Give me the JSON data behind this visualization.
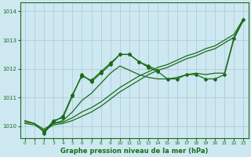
{
  "title": "Graphe pression niveau de la mer (hPa)",
  "xlim": [
    -0.5,
    23.5
  ],
  "ylim": [
    1009.6,
    1014.3
  ],
  "yticks": [
    1010,
    1011,
    1012,
    1013,
    1014
  ],
  "xticks": [
    0,
    1,
    2,
    3,
    4,
    5,
    6,
    7,
    8,
    9,
    10,
    11,
    12,
    13,
    14,
    15,
    16,
    17,
    18,
    19,
    20,
    21,
    22,
    23
  ],
  "bg_color": "#cde8f0",
  "grid_color": "#b0ccd8",
  "line_color": "#1a6b1a",
  "line_dark": "#145214",
  "line1_x": [
    0,
    1,
    2,
    3,
    4,
    5,
    6,
    7,
    8,
    9,
    10,
    11,
    12,
    13,
    14,
    15,
    16,
    17,
    18,
    19,
    20,
    21,
    22,
    23
  ],
  "line1": [
    1010.1,
    1010.05,
    1009.85,
    1010.05,
    1010.1,
    1010.2,
    1010.35,
    1010.5,
    1010.7,
    1010.95,
    1011.2,
    1011.4,
    1011.6,
    1011.8,
    1011.95,
    1012.05,
    1012.2,
    1012.35,
    1012.45,
    1012.6,
    1012.7,
    1012.9,
    1013.1,
    1013.7
  ],
  "line2_x": [
    0,
    1,
    2,
    3,
    4,
    5,
    6,
    7,
    8,
    9,
    10,
    11,
    12,
    13,
    14,
    15,
    16,
    17,
    18,
    19,
    20,
    21,
    22,
    23
  ],
  "line2": [
    1010.15,
    1010.1,
    1009.9,
    1010.1,
    1010.15,
    1010.3,
    1010.5,
    1010.65,
    1010.85,
    1011.1,
    1011.35,
    1011.55,
    1011.75,
    1011.9,
    1012.05,
    1012.15,
    1012.3,
    1012.45,
    1012.55,
    1012.7,
    1012.8,
    1013.0,
    1013.2,
    1013.75
  ],
  "line3_x": [
    0,
    1,
    2,
    3,
    4,
    5,
    6,
    7,
    8,
    9,
    10,
    11,
    12,
    13,
    14,
    15,
    16,
    17,
    18,
    19,
    20,
    21,
    22,
    23
  ],
  "line3": [
    1010.2,
    1010.1,
    1009.8,
    1010.1,
    1010.2,
    1010.5,
    1010.9,
    1011.15,
    1011.5,
    1011.85,
    1012.1,
    1011.95,
    1011.8,
    1011.7,
    1011.65,
    1011.65,
    1011.7,
    1011.8,
    1011.85,
    1011.8,
    1011.85,
    1011.85,
    1013.1,
    1013.7
  ],
  "line4_x": [
    2,
    3,
    4,
    5,
    6,
    7,
    8,
    9,
    10,
    11,
    12,
    13,
    14,
    15,
    16,
    17,
    18,
    19,
    20,
    21,
    22,
    23
  ],
  "line4": [
    1009.8,
    1010.2,
    1010.3,
    1011.05,
    1011.8,
    1011.55,
    1011.85,
    1012.15,
    1012.5,
    1012.5,
    1012.25,
    1012.05,
    1011.9,
    1011.65,
    1011.65,
    1011.8,
    1011.8,
    1011.65,
    1011.65,
    1011.8,
    1013.05,
    1013.7
  ],
  "line5_x": [
    2,
    3,
    4,
    5,
    6,
    7,
    8,
    9,
    10,
    11,
    12,
    13,
    14
  ],
  "line5": [
    1009.75,
    1010.15,
    1010.35,
    1011.1,
    1011.75,
    1011.6,
    1011.9,
    1012.2,
    1012.5,
    1012.5,
    1012.25,
    1012.1,
    1011.95
  ]
}
